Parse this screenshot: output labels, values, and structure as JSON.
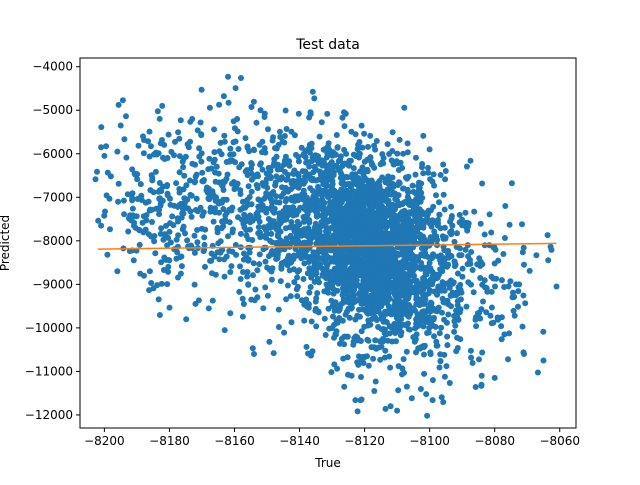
{
  "chart_data": {
    "type": "scatter",
    "title": "Test data",
    "xlabel": "True",
    "ylabel": "Predicted",
    "xlim": [
      -8207.5,
      -8055
    ],
    "ylim": [
      -12300,
      -3800
    ],
    "xticks": [
      -8200,
      -8180,
      -8160,
      -8140,
      -8120,
      -8100,
      -8080,
      -8060
    ],
    "yticks": [
      -4000,
      -5000,
      -6000,
      -7000,
      -8000,
      -9000,
      -10000,
      -11000,
      -12000
    ],
    "grid": false,
    "colors": {
      "scatter": "#1f77b4",
      "line": "#ff7f0e"
    },
    "fit_line": {
      "x": [
        -8202,
        -8061
      ],
      "y": [
        -8190,
        -8060
      ]
    },
    "point_clusters": [
      {
        "cx": -8117,
        "cy": -8300,
        "sx": 9,
        "sy": 900,
        "n": 1300
      },
      {
        "cx": -8130,
        "cy": -7400,
        "sx": 14,
        "sy": 900,
        "n": 800
      },
      {
        "cx": -8150,
        "cy": -7200,
        "sx": 22,
        "sy": 1100,
        "n": 650
      },
      {
        "cx": -8105,
        "cy": -9300,
        "sx": 12,
        "sy": 1000,
        "n": 400
      },
      {
        "cx": -8180,
        "cy": -7300,
        "sx": 12,
        "sy": 1000,
        "n": 160
      },
      {
        "cx": -8090,
        "cy": -8900,
        "sx": 14,
        "sy": 1000,
        "n": 160
      }
    ],
    "sample_points": [
      {
        "x": -8162,
        "y": -4230
      },
      {
        "x": -8158,
        "y": -4260
      },
      {
        "x": -8201,
        "y": -5850
      },
      {
        "x": -8200,
        "y": -6050
      },
      {
        "x": -8196,
        "y": -8700
      },
      {
        "x": -8196,
        "y": -5950
      },
      {
        "x": -8195,
        "y": -5350
      },
      {
        "x": -8201,
        "y": -7650
      },
      {
        "x": -8198,
        "y": -6520
      },
      {
        "x": -8186,
        "y": -8700
      },
      {
        "x": -8183,
        "y": -5200
      },
      {
        "x": -8172,
        "y": -9450
      },
      {
        "x": -8163,
        "y": -10050
      },
      {
        "x": -8154,
        "y": -10600
      },
      {
        "x": -8152,
        "y": -5000
      },
      {
        "x": -8100,
        "y": -5900
      },
      {
        "x": -8093,
        "y": -7650
      },
      {
        "x": -8088,
        "y": -7600
      },
      {
        "x": -8071,
        "y": -8550
      },
      {
        "x": -8077,
        "y": -10150
      },
      {
        "x": -8065,
        "y": -10750
      },
      {
        "x": -8061,
        "y": -9050
      },
      {
        "x": -8071,
        "y": -10600
      },
      {
        "x": -8080,
        "y": -11150
      },
      {
        "x": -8084,
        "y": -11100
      },
      {
        "x": -8110,
        "y": -11900
      },
      {
        "x": -8112,
        "y": -11800
      },
      {
        "x": -8117,
        "y": -11450
      },
      {
        "x": -8107,
        "y": -11350
      },
      {
        "x": -8099,
        "y": -11200
      },
      {
        "x": -8124,
        "y": -11100
      }
    ]
  }
}
